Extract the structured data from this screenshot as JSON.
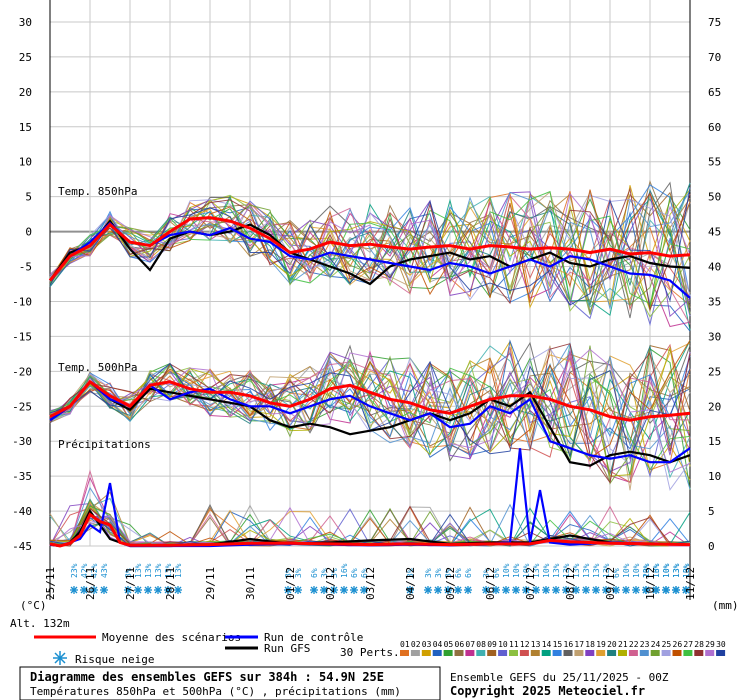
{
  "chart_data": {
    "type": "line",
    "title": "Diagramme des ensembles GEFS sur 384h : 54.9N 25E",
    "subtitle": "Températures 850hPa et 500hPa (°C) , précipitations (mm)",
    "run_info": "Ensemble GEFS du 25/11/2025 - 00Z",
    "copyright": "Copyright 2025 Meteociel.fr",
    "left_axis_label": "(°C)",
    "right_axis_label": "(mm)",
    "altitude_label": "Alt. 132m",
    "left_ticks": [
      "30",
      "25",
      "20",
      "15",
      "10",
      "5",
      "0",
      "-5",
      "-10",
      "-15",
      "-20",
      "-25",
      "-30",
      "-35",
      "-40",
      "-45"
    ],
    "right_ticks": [
      "75",
      "70",
      "65",
      "60",
      "55",
      "50",
      "45",
      "40",
      "35",
      "30",
      "25",
      "20",
      "15",
      "10",
      "5",
      "0"
    ],
    "ylim_left": [
      -45,
      30
    ],
    "ylim_right": [
      0,
      75
    ],
    "grid": true,
    "dates": [
      "25/11",
      "26/11",
      "27/11",
      "28/11",
      "29/11",
      "30/11",
      "01/12",
      "02/12",
      "03/12",
      "04/12",
      "05/12",
      "06/12",
      "07/12",
      "08/12",
      "09/12",
      "10/12",
      "11/12"
    ],
    "section_labels": {
      "t850": "Temp. 850hPa",
      "t500": "Temp. 500hPa",
      "precip": "Précipitations"
    },
    "legend": {
      "mean": "Moyenne des scénarios",
      "control": "Run de contrôle",
      "gfs": "Run GFS",
      "snow": "Risque neige",
      "perts_label": "30 Perts.",
      "pert_numbers": [
        "01",
        "02",
        "03",
        "04",
        "05",
        "06",
        "07",
        "08",
        "09",
        "10",
        "11",
        "12",
        "13",
        "14",
        "15",
        "16",
        "17",
        "18",
        "19",
        "20",
        "21",
        "22",
        "23",
        "24",
        "25",
        "26",
        "27",
        "28",
        "29",
        "30"
      ],
      "pert_colors": [
        "#e07020",
        "#a0a0a0",
        "#d0a000",
        "#2060c0",
        "#30a030",
        "#907040",
        "#c03090",
        "#40b0b0",
        "#a06020",
        "#6060d0",
        "#8cc040",
        "#d05050",
        "#b08030",
        "#00a080",
        "#3080e0",
        "#606060",
        "#c0a070",
        "#8040c0",
        "#e0a030",
        "#208080",
        "#b0b000",
        "#d06090",
        "#5090d0",
        "#70a030",
        "#a0a0e0",
        "#c05000",
        "#40c040",
        "#903030",
        "#b070d0",
        "#2040a0"
      ]
    },
    "snow_risk": {
      "values": [
        23,
        42,
        42,
        43,
        3,
        13,
        13,
        13,
        13,
        13,
        3,
        3,
        6,
        3,
        3,
        16,
        6,
        6,
        3,
        3,
        3,
        3,
        6,
        6,
        3,
        6,
        10,
        10,
        10,
        13,
        10,
        13,
        13,
        13,
        13,
        13,
        13,
        6,
        10,
        10,
        10,
        13,
        10,
        13,
        10,
        23,
        16,
        10,
        13,
        13
      ],
      "labels": [
        "23%",
        "42%",
        "42%",
        "43%",
        "3%",
        "13%",
        "13%",
        "13%",
        "13%",
        "13%",
        "3%",
        "3%",
        "6%",
        "3%",
        "3%",
        "16%",
        "6%",
        "6%",
        "3%",
        "3%",
        "3%",
        "3%",
        "6%",
        "6%",
        "3%",
        "6%",
        "10%",
        "10%",
        "10%",
        "13%",
        "10%",
        "13%",
        "13%",
        "13%",
        "13%",
        "13%",
        "13%",
        "6%",
        "10%",
        "10%",
        "10%",
        "13%",
        "10%",
        "13%",
        "10%",
        "23%",
        "16%",
        "10%",
        "13%",
        "13%"
      ],
      "x_days": [
        0.6,
        0.85,
        1.1,
        1.35,
        1.95,
        2.2,
        2.45,
        2.7,
        2.95,
        3.2,
        5.95,
        6.2,
        6.6,
        6.85,
        7.1,
        7.35,
        7.6,
        7.85,
        9.0,
        9.45,
        9.7,
        9.95,
        10.2,
        10.45,
        10.9,
        11.15,
        11.4,
        11.65,
        11.9,
        12.15,
        12.4,
        12.65,
        12.9,
        13.15,
        13.4,
        13.65,
        13.9,
        14.15,
        14.4,
        14.65,
        14.9,
        15.15,
        15.4,
        15.65,
        15.9,
        14.9,
        15.15,
        15.4,
        15.65,
        15.9
      ]
    },
    "series": [
      {
        "name": "Moyenne des scénarios",
        "level": "850",
        "color": "#ff0000",
        "x": [
          0,
          0.5,
          1,
          1.5,
          2,
          2.5,
          3,
          3.5,
          4,
          4.5,
          5,
          5.5,
          6,
          6.5,
          7,
          7.5,
          8,
          8.5,
          9,
          9.5,
          10,
          10.5,
          11,
          11.5,
          12,
          12.5,
          13,
          13.5,
          14,
          14.5,
          15,
          15.5,
          16
        ],
        "values": [
          -7,
          -3.5,
          -2,
          1,
          -1.5,
          -2,
          0,
          1.8,
          2,
          1.5,
          0.5,
          -1,
          -3,
          -2.5,
          -1.5,
          -2,
          -1.8,
          -2.2,
          -2.5,
          -2.2,
          -2,
          -2.5,
          -2,
          -2.2,
          -2.5,
          -2.3,
          -2.5,
          -3,
          -2.5,
          -3.2,
          -3,
          -3.5,
          -3.3
        ]
      },
      {
        "name": "Run de contrôle",
        "level": "850",
        "color": "#0000ff",
        "x": [
          0,
          0.5,
          1,
          1.5,
          2,
          2.5,
          3,
          3.5,
          4,
          4.5,
          5,
          5.5,
          6,
          6.5,
          7,
          7.5,
          8,
          8.5,
          9,
          9.5,
          10,
          10.5,
          11,
          11.5,
          12,
          12.5,
          13,
          13.5,
          14,
          14.5,
          15,
          15.5,
          16
        ],
        "values": [
          -7,
          -3.5,
          -1.5,
          1.2,
          -1.5,
          -2,
          -0.5,
          0,
          -0.5,
          0.5,
          -1,
          -1.5,
          -3.5,
          -4,
          -3,
          -3.5,
          -4,
          -4.5,
          -5,
          -5.5,
          -4.5,
          -5,
          -6,
          -5,
          -4,
          -5,
          -3.5,
          -4,
          -5,
          -6,
          -6.2,
          -7,
          -9.5
        ]
      },
      {
        "name": "Run GFS",
        "level": "850",
        "color": "#000000",
        "x": [
          0,
          0.5,
          1,
          1.5,
          2,
          2.5,
          3,
          3.5,
          4,
          4.5,
          5,
          5.5,
          6,
          6.5,
          7,
          7.5,
          8,
          8.5,
          9,
          9.5,
          10,
          10.5,
          11,
          11.5,
          12,
          12.5,
          13,
          13.5,
          14,
          14.5,
          15,
          15.5,
          16
        ],
        "values": [
          -7,
          -3,
          -2,
          1.5,
          -2.5,
          -5.5,
          -1,
          0,
          -0.5,
          0,
          1,
          -0.5,
          -3,
          -4,
          -5,
          -6,
          -7.5,
          -5,
          -4,
          -3.5,
          -3,
          -4,
          -3.5,
          -5,
          -4,
          -3,
          -4.5,
          -5,
          -4,
          -3.5,
          -4.5,
          -5,
          -5.2
        ]
      },
      {
        "name": "Moyenne des scénarios",
        "level": "500",
        "color": "#ff0000",
        "x": [
          0,
          0.5,
          1,
          1.5,
          2,
          2.5,
          3,
          3.5,
          4,
          4.5,
          5,
          5.5,
          6,
          6.5,
          7,
          7.5,
          8,
          8.5,
          9,
          9.5,
          10,
          10.5,
          11,
          11.5,
          12,
          12.5,
          13,
          13.5,
          14,
          14.5,
          15,
          15.5,
          16
        ],
        "values": [
          -26.5,
          -25,
          -21.5,
          -23.5,
          -25,
          -22,
          -21.5,
          -22.5,
          -23,
          -23,
          -23.5,
          -24.5,
          -25,
          -24,
          -22.5,
          -22,
          -23,
          -24,
          -24.5,
          -25.5,
          -26,
          -25,
          -24,
          -23.5,
          -23.5,
          -24,
          -25,
          -25.5,
          -26.5,
          -27,
          -26.5,
          -26.3,
          -26
        ]
      },
      {
        "name": "Run de contrôle",
        "level": "500",
        "color": "#0000ff",
        "x": [
          0,
          0.5,
          1,
          1.5,
          2,
          2.5,
          3,
          3.5,
          4,
          4.5,
          5,
          5.5,
          6,
          6.5,
          7,
          7.5,
          8,
          8.5,
          9,
          9.5,
          10,
          10.5,
          11,
          11.5,
          12,
          12.5,
          13,
          13.5,
          14,
          14.5,
          15,
          15.5,
          16
        ],
        "values": [
          -27,
          -25,
          -21.5,
          -24,
          -25,
          -22,
          -24,
          -23,
          -22.5,
          -24,
          -25,
          -25,
          -26,
          -25,
          -24,
          -23.5,
          -25,
          -26,
          -27,
          -26,
          -28,
          -27.5,
          -25,
          -26,
          -24,
          -30,
          -31,
          -32,
          -32.5,
          -32,
          -33,
          -33,
          -31
        ]
      },
      {
        "name": "Run GFS",
        "level": "500",
        "color": "#000000",
        "x": [
          0,
          0.5,
          1,
          1.5,
          2,
          2.5,
          3,
          3.5,
          4,
          4.5,
          5,
          5.5,
          6,
          6.5,
          7,
          7.5,
          8,
          8.5,
          9,
          9.5,
          10,
          10.5,
          11,
          11.5,
          12,
          12.5,
          13,
          13.5,
          14,
          14.5,
          15,
          15.5,
          16
        ],
        "values": [
          -27,
          -25,
          -21.5,
          -24,
          -25.5,
          -22.5,
          -23,
          -23.5,
          -24,
          -24.5,
          -25,
          -27,
          -28,
          -27.5,
          -28,
          -29,
          -28.5,
          -28,
          -27,
          -26,
          -27,
          -26,
          -24,
          -25,
          -23,
          -28,
          -33,
          -33.5,
          -32,
          -31.5,
          -32,
          -33,
          -32
        ]
      },
      {
        "name": "Moyenne des scénarios",
        "level": "precip",
        "color": "#ff0000",
        "x": [
          0,
          0.25,
          0.5,
          0.75,
          1,
          1.25,
          1.5,
          1.75,
          2,
          2.5,
          3,
          4,
          5,
          6,
          7,
          8,
          9,
          10,
          11,
          12,
          12.5,
          13,
          13.5,
          14,
          15,
          16
        ],
        "values": [
          0.3,
          0,
          0.4,
          1.5,
          4.5,
          3.5,
          3,
          0.5,
          0.1,
          0.1,
          0.1,
          0.2,
          0.4,
          0.4,
          0.3,
          0.2,
          0.3,
          0.2,
          0.3,
          0.3,
          0.8,
          0.6,
          0.5,
          0.4,
          0.3,
          0.2
        ]
      },
      {
        "name": "Run de contrôle",
        "level": "precip",
        "color": "#0000ff",
        "x": [
          0,
          0.25,
          0.5,
          0.75,
          1,
          1.25,
          1.5,
          1.75,
          2,
          3,
          4,
          5,
          6,
          7,
          8,
          9,
          10,
          11,
          11.5,
          11.75,
          12,
          12.25,
          12.5,
          13,
          14,
          15,
          16
        ],
        "values": [
          0.2,
          0,
          0.5,
          1,
          3,
          2,
          9,
          0.5,
          0,
          0,
          0,
          0.2,
          0.3,
          0.2,
          0.1,
          0.2,
          0.1,
          0.3,
          0.5,
          14,
          0.5,
          8,
          0.5,
          0.2,
          0.5,
          0.3,
          0.2
        ]
      },
      {
        "name": "Run GFS",
        "level": "precip",
        "color": "#000000",
        "x": [
          0,
          0.25,
          0.5,
          0.75,
          1,
          1.25,
          1.5,
          1.75,
          2,
          3,
          4,
          5,
          6,
          7,
          8,
          9,
          10,
          11,
          12,
          13,
          14,
          15,
          16
        ],
        "values": [
          0.2,
          0,
          0.5,
          2,
          5,
          3,
          1,
          0.5,
          0,
          0,
          0.2,
          1,
          0.3,
          0.5,
          0.8,
          1,
          0.3,
          0.5,
          0.5,
          1.5,
          0.5,
          0.3,
          0.2
        ]
      }
    ]
  }
}
